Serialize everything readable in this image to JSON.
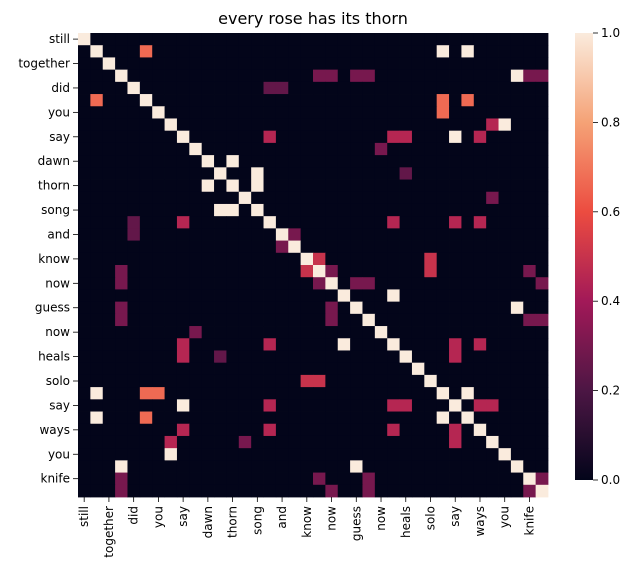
{
  "chart_data": {
    "type": "heatmap",
    "title": "every rose has its thorn",
    "colormap": "rocket",
    "vmin": 0.0,
    "vmax": 1.0,
    "colorbar_ticks": [
      "0.0",
      "0.2",
      "0.4",
      "0.6",
      "0.8",
      "1.0"
    ],
    "rows": [
      "still",
      "",
      "together",
      "",
      "did",
      "",
      "you",
      "",
      "say",
      "",
      "dawn",
      "",
      "thorn",
      "",
      "song",
      "",
      "and",
      "",
      "know",
      "",
      "now",
      "",
      "guess",
      "",
      "now",
      "",
      "heals",
      "",
      "solo",
      "",
      "say",
      "",
      "ways",
      "",
      "you",
      "",
      "knife",
      ""
    ],
    "cols": [
      "still",
      "",
      "together",
      "",
      "did",
      "",
      "you",
      "",
      "say",
      "",
      "dawn",
      "",
      "thorn",
      "",
      "song",
      "",
      "and",
      "",
      "know",
      "",
      "now",
      "",
      "guess",
      "",
      "now",
      "",
      "heals",
      "",
      "solo",
      "",
      "say",
      "",
      "ways",
      "",
      "you",
      "",
      "knife",
      ""
    ],
    "cells": [
      [
        0,
        0,
        1.0
      ],
      [
        1,
        1,
        1.0
      ],
      [
        2,
        2,
        1.0
      ],
      [
        3,
        3,
        1.0
      ],
      [
        4,
        4,
        1.0
      ],
      [
        5,
        5,
        1.0
      ],
      [
        6,
        6,
        1.0
      ],
      [
        7,
        7,
        1.0
      ],
      [
        8,
        8,
        1.0
      ],
      [
        9,
        9,
        1.0
      ],
      [
        10,
        10,
        1.0
      ],
      [
        11,
        11,
        1.0
      ],
      [
        12,
        12,
        1.0
      ],
      [
        13,
        13,
        1.0
      ],
      [
        14,
        14,
        1.0
      ],
      [
        15,
        15,
        1.0
      ],
      [
        16,
        16,
        1.0
      ],
      [
        17,
        17,
        1.0
      ],
      [
        18,
        18,
        1.0
      ],
      [
        19,
        19,
        1.0
      ],
      [
        20,
        20,
        1.0
      ],
      [
        21,
        21,
        1.0
      ],
      [
        22,
        22,
        1.0
      ],
      [
        23,
        23,
        1.0
      ],
      [
        24,
        24,
        1.0
      ],
      [
        25,
        25,
        1.0
      ],
      [
        26,
        26,
        1.0
      ],
      [
        27,
        27,
        1.0
      ],
      [
        28,
        28,
        1.0
      ],
      [
        29,
        29,
        1.0
      ],
      [
        30,
        30,
        1.0
      ],
      [
        31,
        31,
        1.0
      ],
      [
        32,
        32,
        1.0
      ],
      [
        33,
        33,
        1.0
      ],
      [
        34,
        34,
        1.0
      ],
      [
        35,
        35,
        1.0
      ],
      [
        36,
        36,
        1.0
      ],
      [
        37,
        37,
        1.0
      ],
      [
        1,
        5,
        0.67
      ],
      [
        1,
        29,
        1.0
      ],
      [
        5,
        1,
        0.67
      ],
      [
        29,
        1,
        1.0
      ],
      [
        5,
        29,
        0.67
      ],
      [
        29,
        5,
        0.67
      ],
      [
        3,
        19,
        0.3
      ],
      [
        3,
        23,
        0.3
      ],
      [
        3,
        35,
        1.0
      ],
      [
        3,
        37,
        0.3
      ],
      [
        19,
        3,
        0.3
      ],
      [
        23,
        3,
        0.3
      ],
      [
        35,
        3,
        1.0
      ],
      [
        37,
        3,
        0.3
      ],
      [
        4,
        15,
        0.25
      ],
      [
        4,
        16,
        0.25
      ],
      [
        15,
        4,
        0.25
      ],
      [
        16,
        4,
        0.25
      ],
      [
        6,
        29,
        0.67
      ],
      [
        29,
        6,
        0.67
      ],
      [
        7,
        33,
        0.45
      ],
      [
        7,
        34,
        1.0
      ],
      [
        33,
        7,
        0.45
      ],
      [
        34,
        7,
        1.0
      ],
      [
        8,
        15,
        0.45
      ],
      [
        8,
        25,
        0.45
      ],
      [
        8,
        30,
        1.0
      ],
      [
        8,
        32,
        0.45
      ],
      [
        15,
        8,
        0.45
      ],
      [
        25,
        8,
        0.45
      ],
      [
        30,
        8,
        1.0
      ],
      [
        32,
        8,
        0.45
      ],
      [
        9,
        24,
        0.3
      ],
      [
        24,
        9,
        0.3
      ],
      [
        10,
        12,
        1.0
      ],
      [
        12,
        10,
        1.0
      ],
      [
        12,
        14,
        1.0
      ],
      [
        14,
        12,
        1.0
      ],
      [
        13,
        33,
        0.3
      ],
      [
        33,
        13,
        0.3
      ],
      [
        14,
        11,
        1.0
      ],
      [
        11,
        14,
        1.0
      ],
      [
        15,
        25,
        0.45
      ],
      [
        15,
        30,
        0.45
      ],
      [
        15,
        32,
        0.45
      ],
      [
        25,
        15,
        0.45
      ],
      [
        25,
        30,
        0.45
      ],
      [
        25,
        32,
        0.45
      ],
      [
        30,
        15,
        0.45
      ],
      [
        30,
        25,
        0.45
      ],
      [
        30,
        32,
        0.45
      ],
      [
        32,
        15,
        0.45
      ],
      [
        32,
        25,
        0.45
      ],
      [
        32,
        30,
        0.45
      ],
      [
        16,
        17,
        0.3
      ],
      [
        17,
        16,
        0.3
      ],
      [
        18,
        28,
        0.5
      ],
      [
        28,
        18,
        0.5
      ],
      [
        18,
        19,
        0.5
      ],
      [
        19,
        18,
        0.5
      ],
      [
        19,
        28,
        0.5
      ],
      [
        28,
        19,
        0.5
      ],
      [
        20,
        3,
        0.3
      ],
      [
        20,
        19,
        0.3
      ],
      [
        20,
        23,
        0.3
      ],
      [
        20,
        37,
        0.3
      ],
      [
        3,
        20,
        0.3
      ],
      [
        19,
        20,
        0.3
      ],
      [
        23,
        20,
        0.3
      ],
      [
        37,
        20,
        0.3
      ],
      [
        21,
        25,
        1.0
      ],
      [
        25,
        21,
        1.0
      ],
      [
        22,
        3,
        0.3
      ],
      [
        22,
        20,
        0.3
      ],
      [
        22,
        35,
        1.0
      ],
      [
        3,
        22,
        0.3
      ],
      [
        20,
        22,
        0.3
      ],
      [
        35,
        22,
        1.0
      ],
      [
        26,
        8,
        0.45
      ],
      [
        26,
        11,
        0.25
      ],
      [
        26,
        30,
        0.45
      ],
      [
        8,
        26,
        0.45
      ],
      [
        11,
        26,
        0.25
      ],
      [
        30,
        26,
        0.45
      ],
      [
        31,
        1,
        1.0
      ],
      [
        31,
        5,
        0.67
      ],
      [
        31,
        29,
        1.0
      ],
      [
        1,
        31,
        1.0
      ],
      [
        5,
        31,
        0.67
      ],
      [
        29,
        31,
        1.0
      ],
      [
        33,
        7,
        0.45
      ],
      [
        33,
        30,
        0.45
      ],
      [
        30,
        33,
        0.45
      ],
      [
        36,
        3,
        0.3
      ],
      [
        36,
        19,
        0.3
      ],
      [
        36,
        23,
        0.3
      ],
      [
        36,
        37,
        0.3
      ],
      [
        3,
        36,
        0.3
      ],
      [
        19,
        36,
        0.3
      ],
      [
        23,
        36,
        0.3
      ],
      [
        37,
        36,
        0.3
      ],
      [
        37,
        23,
        0.3
      ],
      [
        23,
        37,
        0.3
      ]
    ]
  }
}
